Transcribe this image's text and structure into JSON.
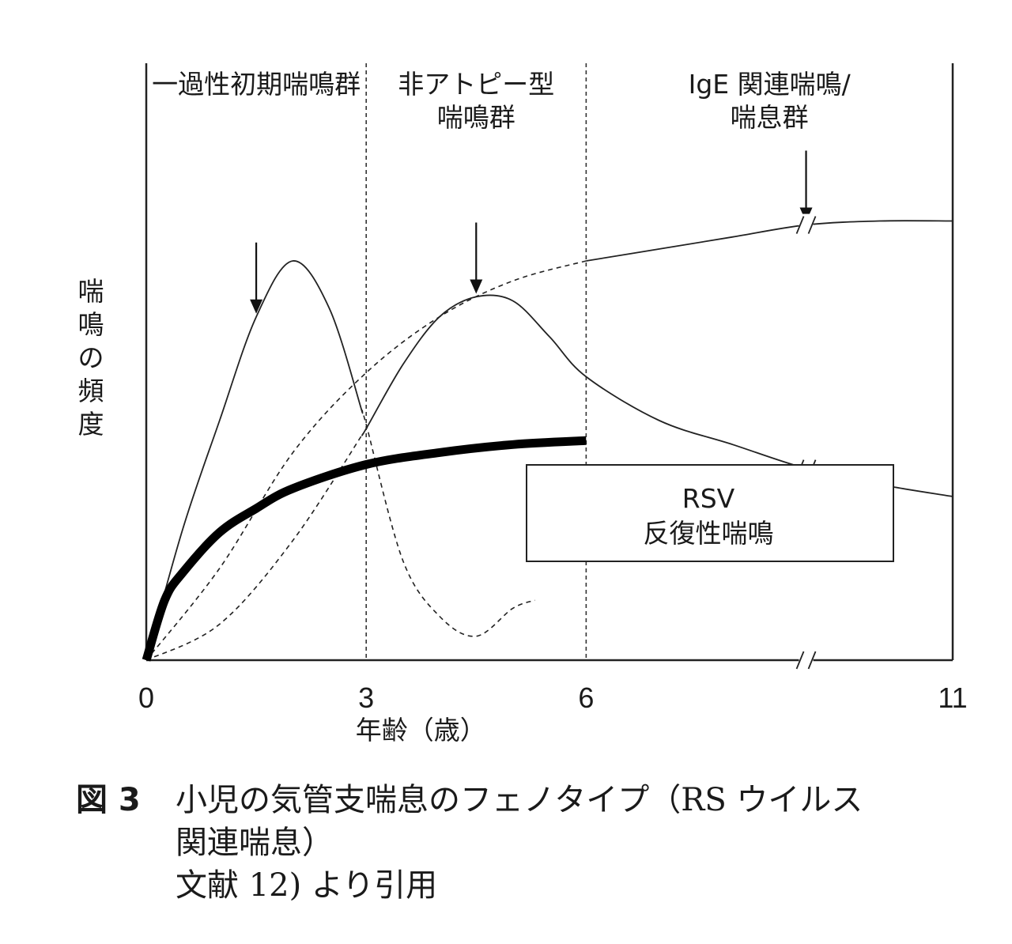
{
  "chart_data": {
    "type": "line",
    "xlabel": "年齢（歳）",
    "ylabel": "喘鳴の頻度",
    "x_ticks": [
      "0",
      "3",
      "6",
      "11"
    ],
    "phase_dividers": [
      3,
      6
    ],
    "phases": [
      {
        "lines": [
          "一過性初期喘鳴群"
        ]
      },
      {
        "lines": [
          "非アトピー型",
          "喘鳴群"
        ]
      },
      {
        "lines": [
          "IgE 関連喘鳴/",
          "喘息群"
        ]
      }
    ],
    "box": {
      "lines": [
        "RSV",
        "反復性喘鳴"
      ]
    },
    "series": [
      {
        "style": "thin-solid-then-dashed",
        "dash_after_x": 2.95,
        "peak_arrow_x": 1.5,
        "x": [
          0,
          0.5,
          1,
          1.5,
          2,
          2.5,
          3,
          3.5,
          4,
          4.5,
          5,
          5.3
        ],
        "y": [
          0,
          0.33,
          0.6,
          0.86,
          1.0,
          0.88,
          0.59,
          0.25,
          0.11,
          0.06,
          0.13,
          0.15
        ]
      },
      {
        "style": "thin-dashed-then-solid",
        "solid_after_x": 2.95,
        "peak_arrow_x": 4.5,
        "x": [
          0,
          1,
          2,
          3,
          3.5,
          4,
          4.5,
          5,
          5.5,
          6,
          7,
          8,
          9,
          10,
          11
        ],
        "y": [
          0,
          0.09,
          0.3,
          0.58,
          0.74,
          0.86,
          0.91,
          0.9,
          0.81,
          0.71,
          0.6,
          0.54,
          0.48,
          0.44,
          0.41
        ],
        "break_at_x": 9
      },
      {
        "style": "thin-dashed-then-solid",
        "solid_after_x": 6,
        "peak_arrow_x": 9,
        "x": [
          0,
          1,
          2,
          3,
          4,
          5,
          6,
          7,
          8,
          9,
          10,
          11
        ],
        "y": [
          0,
          0.23,
          0.52,
          0.72,
          0.86,
          0.95,
          1.0,
          1.03,
          1.06,
          1.09,
          1.1,
          1.1
        ],
        "break_at_x": 9
      },
      {
        "style": "thick-solid",
        "x": [
          0,
          0.25,
          0.5,
          1,
          1.5,
          2,
          3,
          4,
          5,
          6
        ],
        "y": [
          0,
          0.15,
          0.22,
          0.32,
          0.38,
          0.43,
          0.49,
          0.52,
          0.54,
          0.55
        ]
      }
    ],
    "axis_break_at_x": 9,
    "xlim": [
      0,
      11
    ],
    "ylim": [
      0,
      1.2
    ]
  },
  "caption": {
    "figure_number": "図 3",
    "title_lines": [
      "小児の気管支喘息のフェノタイプ（RS ウイルス",
      "関連喘息）"
    ],
    "source": "文献 12) より引用"
  }
}
